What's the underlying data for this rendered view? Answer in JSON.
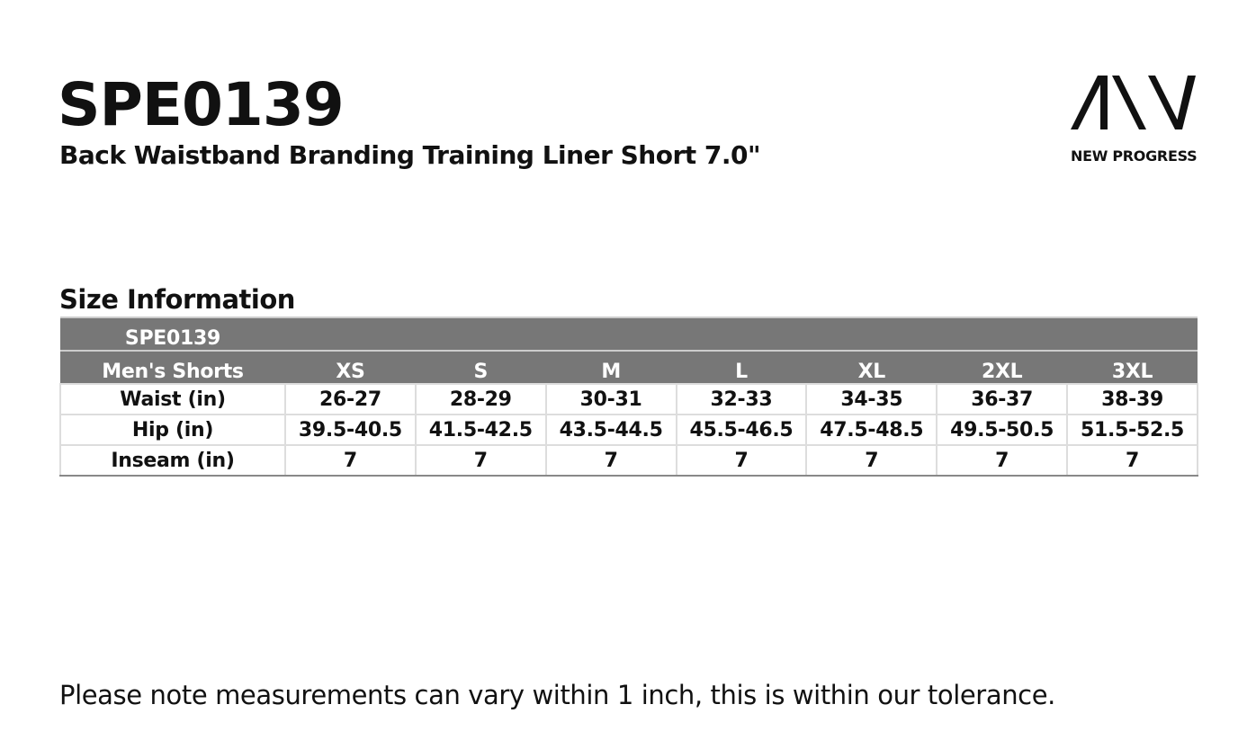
{
  "header": {
    "title": "SPE0139",
    "subtitle": "Back Waistband Branding Training Liner Short 7.0\""
  },
  "logo": {
    "text": "NEW PROGRESS"
  },
  "section_title": "Size Information",
  "table": {
    "header_lines": [
      "SPE0139",
      "Men's Shorts"
    ],
    "columns": [
      "XS",
      "S",
      "M",
      "L",
      "XL",
      "2XL",
      "3XL"
    ],
    "rows": [
      {
        "label": "Waist (in)",
        "values": [
          "26-27",
          "28-29",
          "30-31",
          "32-33",
          "34-35",
          "36-37",
          "38-39"
        ]
      },
      {
        "label": "Hip (in)",
        "values": [
          "39.5-40.5",
          "41.5-42.5",
          "43.5-44.5",
          "45.5-46.5",
          "47.5-48.5",
          "49.5-50.5",
          "51.5-52.5"
        ]
      },
      {
        "label": "Inseam (in)",
        "values": [
          "7",
          "7",
          "7",
          "7",
          "7",
          "7",
          "7"
        ]
      }
    ]
  },
  "footnote": "Please note measurements can vary within 1 inch, this is within our tolerance."
}
